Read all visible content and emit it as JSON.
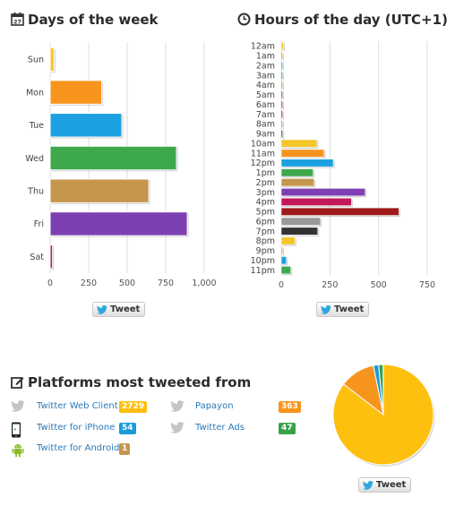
{
  "sections": {
    "days_title": "Days of the week",
    "hours_title": "Hours of the day (UTC+1)",
    "platforms_title": "Platforms most tweeted from"
  },
  "tweet_label": "Tweet",
  "chart_data": [
    {
      "type": "bar",
      "orientation": "horizontal",
      "title": "Days of the week",
      "categories": [
        "Sun",
        "Mon",
        "Tue",
        "Wed",
        "Thu",
        "Fri",
        "Sat"
      ],
      "values": [
        25,
        335,
        465,
        820,
        640,
        890,
        15
      ],
      "colors": [
        "#f5c62b",
        "#f7941d",
        "#1ba1e2",
        "#3ea84c",
        "#c4964e",
        "#7e3fb3",
        "#c2185b"
      ],
      "xlim": [
        0,
        1000
      ],
      "xticks": [
        "0",
        "250",
        "500",
        "750",
        "1,000"
      ],
      "grid": true
    },
    {
      "type": "bar",
      "orientation": "horizontal",
      "title": "Hours of the day (UTC+1)",
      "categories": [
        "12am",
        "1am",
        "2am",
        "3am",
        "4am",
        "5am",
        "6am",
        "7am",
        "8am",
        "9am",
        "10am",
        "11am",
        "12pm",
        "1pm",
        "2pm",
        "3pm",
        "4pm",
        "5pm",
        "6pm",
        "7pm",
        "8pm",
        "9pm",
        "10pm",
        "11pm"
      ],
      "values": [
        12,
        3,
        6,
        1,
        1,
        1,
        1,
        1,
        1,
        1,
        195,
        235,
        285,
        175,
        180,
        460,
        385,
        645,
        215,
        200,
        75,
        4,
        28,
        52
      ],
      "colors": [
        "#f5c62b",
        "#f7941d",
        "#1ba1e2",
        "#3ea84c",
        "#c4964e",
        "#7e3fb3",
        "#c2185b",
        "#9e1b1b",
        "#999999",
        "#333333",
        "#f5c62b",
        "#f7941d",
        "#1ba1e2",
        "#3ea84c",
        "#c4964e",
        "#7e3fb3",
        "#c2185b",
        "#9e1b1b",
        "#999999",
        "#333333",
        "#f5c62b",
        "#f7941d",
        "#1ba1e2",
        "#3ea84c"
      ],
      "xlim": [
        0,
        800
      ],
      "xticks": [
        "0",
        "250",
        "500",
        "750"
      ],
      "grid": true
    },
    {
      "type": "pie",
      "labels": [
        "Twitter Web Client",
        "Papayon",
        "Twitter for iPhone",
        "Twitter Ads",
        "Twitter for Android"
      ],
      "values": [
        2729,
        363,
        54,
        47,
        1
      ],
      "colors": [
        "#fdc00f",
        "#f7941d",
        "#1a9bd7",
        "#3aa14b",
        "#c4964e"
      ]
    }
  ],
  "platforms": [
    {
      "name": "Twitter Web Client",
      "count": "2729",
      "color": "#fdc00f",
      "icon": "bird-icon"
    },
    {
      "name": "Papayon",
      "count": "363",
      "color": "#f7941d",
      "icon": "bird-icon"
    },
    {
      "name": "Twitter for iPhone",
      "count": "54",
      "color": "#1a9bd7",
      "icon": "iphone-icon"
    },
    {
      "name": "Twitter Ads",
      "count": "47",
      "color": "#3aa14b",
      "icon": "bird-icon"
    },
    {
      "name": "Twitter for Android",
      "count": "1",
      "color": "#c4964e",
      "icon": "android-icon"
    }
  ]
}
